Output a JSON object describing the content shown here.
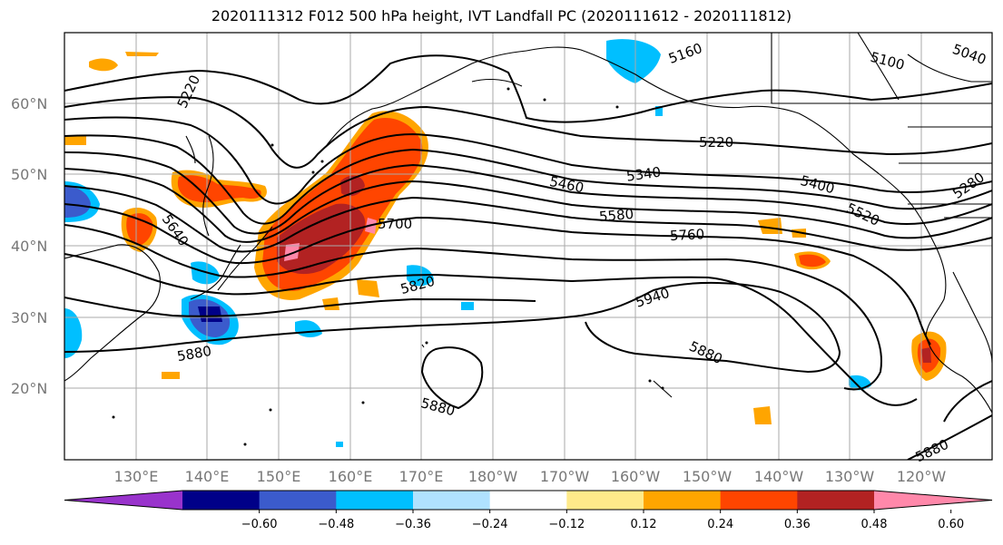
{
  "title": "2020111312 F012 500 hPa height, IVT Landfall PC (2020111612 - 2020111812)",
  "map": {
    "lat_labels": [
      "60°N",
      "50°N",
      "40°N",
      "30°N",
      "20°N"
    ],
    "lon_labels": [
      "130°E",
      "140°E",
      "150°E",
      "160°E",
      "170°E",
      "180°W",
      "170°W",
      "160°W",
      "150°W",
      "140°W",
      "130°W",
      "120°W"
    ],
    "contour_labels": [
      "5220",
      "5160",
      "5100",
      "5040",
      "5220",
      "5340",
      "5400",
      "5460",
      "5580",
      "5520",
      "5280",
      "5640",
      "5700",
      "5760",
      "5820",
      "5940",
      "5880",
      "5880",
      "5880",
      "5880"
    ]
  },
  "colorbar": {
    "colors": [
      "#9933cc",
      "#000088",
      "#3b5bcc",
      "#00bfff",
      "#b0e2ff",
      "#ffffff",
      "#ffea8a",
      "#ffa500",
      "#ff4500",
      "#b22222",
      "#ff88aa"
    ],
    "tick_labels": [
      "-0.60",
      "-0.48",
      "-0.36",
      "-0.24",
      "-0.12",
      "0.12",
      "0.24",
      "0.36",
      "0.48",
      "0.60"
    ]
  }
}
